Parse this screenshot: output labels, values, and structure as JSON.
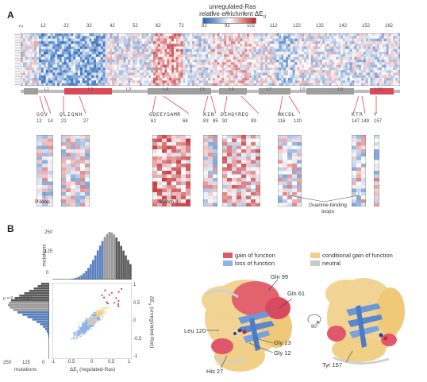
{
  "panels": {
    "a_label": "A",
    "b_label": "B"
  },
  "colorbar": {
    "title_line1": "unregulated-Ras",
    "title_line2": "relative enrichment ΔE",
    "title_sub": "u",
    "ticks": [
      "−1",
      "0",
      "1"
    ]
  },
  "heatmap_top": {
    "residue_ticks": [
      "2",
      "12",
      "22",
      "32",
      "42",
      "52",
      "62",
      "72",
      "82",
      "92",
      "102",
      "112",
      "122",
      "132",
      "142",
      "152",
      "162"
    ],
    "segments": [
      "L1",
      "L2",
      "L3",
      "L4",
      "L5",
      "L6",
      "L7",
      "L8",
      "L9",
      "L10"
    ]
  },
  "zooms": [
    {
      "seq": "GGV",
      "ticks": [
        "12",
        "14"
      ],
      "caption": "P-loop"
    },
    {
      "seq": "QLIQNH",
      "ticks": [
        "22",
        "27"
      ],
      "caption": ""
    },
    {
      "seq": "GQEEYSAMR",
      "ticks": [
        "61",
        "68"
      ],
      "caption": "Switch II"
    },
    {
      "seq": "AIN",
      "ticks": [
        "83",
        "85"
      ],
      "caption": ""
    },
    {
      "seq": "DIHQYREQ",
      "ticks": [
        "92",
        "99"
      ],
      "caption": ""
    },
    {
      "seq": "NKCDL",
      "ticks": [
        "116",
        "120"
      ],
      "caption": ""
    },
    {
      "seq": "KTR",
      "ticks": [
        "147",
        "149"
      ],
      "caption": ""
    },
    {
      "seq": "Y",
      "ticks": [
        "157"
      ],
      "caption": ""
    }
  ],
  "guanine_caption": "Guanine-binding loops",
  "histogram_top": {
    "ylabel": "mutations",
    "ticks": [
      "0",
      "125",
      "250"
    ]
  },
  "histogram_left": {
    "stat": "μ = 0, σ = 0.17",
    "xlabel": "mutations",
    "ticks": [
      "250",
      "125",
      "0"
    ]
  },
  "scatter": {
    "xlabel": "ΔE",
    "xlabel_sub": "r",
    "xlabel_suffix": " (regulated-Ras)",
    "ylabel": "ΔE",
    "ylabel_sub": "u",
    "ylabel_suffix": " (unregulated-Ras)",
    "xticks": [
      "-1",
      "-0.5",
      "0",
      "0.5",
      "1"
    ],
    "yticks": [
      "1",
      "0.5",
      "0",
      "-0.5",
      "-1"
    ]
  },
  "legend": {
    "gain": "gain of function",
    "loss": "loss of function",
    "conditional": "conditional gain of function",
    "neutral": "neutral"
  },
  "structure_labels": {
    "gln99": "Gln 99",
    "gln61": "Gln 61",
    "leu120": "Leu 120",
    "gly13": "Gly 13",
    "gly12": "Gly 12",
    "his27": "His 27",
    "tyr157": "Tyr 157",
    "rotation": "90°"
  },
  "colors": {
    "gain": "#e0566a",
    "loss": "#8fb3e6",
    "conditional": "#f0cf87",
    "neutral": "#c8c8c8",
    "blue_deep": "#2f6fc0",
    "red_deep": "#c8282e"
  }
}
